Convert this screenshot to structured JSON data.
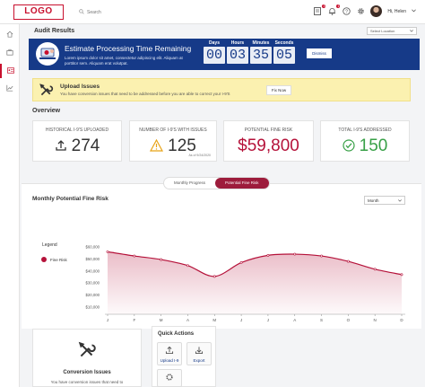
{
  "header": {
    "logo": "LOGO",
    "search_placeholder": "Search",
    "notifications_count": "3",
    "alerts_count": "1",
    "user_name": "Hi, Helen"
  },
  "page": {
    "title": "Audit Results",
    "location_select": "Select Location"
  },
  "banner": {
    "title": "Estimate Processing Time Remaining",
    "text": "Lorem ipsum dolor sit amet, consectetur adipiscing elit. Aliquam at porttitor sem.  Aliquam erat volutpat.",
    "countdown": [
      {
        "label": "Days",
        "value": "00"
      },
      {
        "label": "Hours",
        "value": "03"
      },
      {
        "label": "Minutes",
        "value": "35"
      },
      {
        "label": "Seconds",
        "value": "05"
      }
    ],
    "dismiss_label": "Dismiss"
  },
  "upload_issues": {
    "title": "Upload Issues",
    "text": "You have conversion issues that need to be addressed before you are able to correct your I-9'S",
    "fix_label": "Fix Now"
  },
  "overview": {
    "title": "Overview",
    "cards": [
      {
        "label": "Historical I-9's Uploaded",
        "value": "274",
        "icon": "upload-icon"
      },
      {
        "label": "Number of I-9's with Issues",
        "value": "125",
        "icon": "warning-icon",
        "as_of": "As of 9/24/2020"
      },
      {
        "label": "Potential Fine Risk",
        "value": "$59,800"
      },
      {
        "label": "Total I-9's Addressed",
        "value": "150",
        "icon": "check-circle-icon"
      }
    ]
  },
  "tabs": {
    "monthly_progress": "Monthly Progress",
    "potential_fine_risk": "Potential Fine Risk"
  },
  "chart_panel": {
    "title": "Monthly Potential Fine Risk",
    "period_select": "Month",
    "legend_title": "Legend"
  },
  "chart_data": {
    "type": "area",
    "title": "Monthly Potential Fine Risk",
    "categories": [
      "J",
      "F",
      "M",
      "A",
      "M",
      "J",
      "J",
      "A",
      "S",
      "O",
      "N",
      "D"
    ],
    "series": [
      {
        "name": "Fine Risk",
        "values": [
          56000,
          52500,
          49500,
          44500,
          35500,
          47000,
          53000,
          54000,
          52500,
          48000,
          41500,
          37000
        ]
      }
    ],
    "ylim": [
      10000,
      60000
    ],
    "yticks": [
      "$10,000",
      "$20,000",
      "$30,000",
      "$40,000",
      "$50,000",
      "$60,000"
    ],
    "color": "#b5123a",
    "legend_position": "left",
    "grid": false
  },
  "conversion_issues": {
    "title": "Conversion Issues",
    "text": "You have conversion issues that need to"
  },
  "quick_actions": {
    "title": "Quick Actions",
    "items": [
      {
        "label": "Upload I-9",
        "icon": "upload-icon"
      },
      {
        "label": "Export",
        "icon": "download-icon"
      }
    ]
  }
}
